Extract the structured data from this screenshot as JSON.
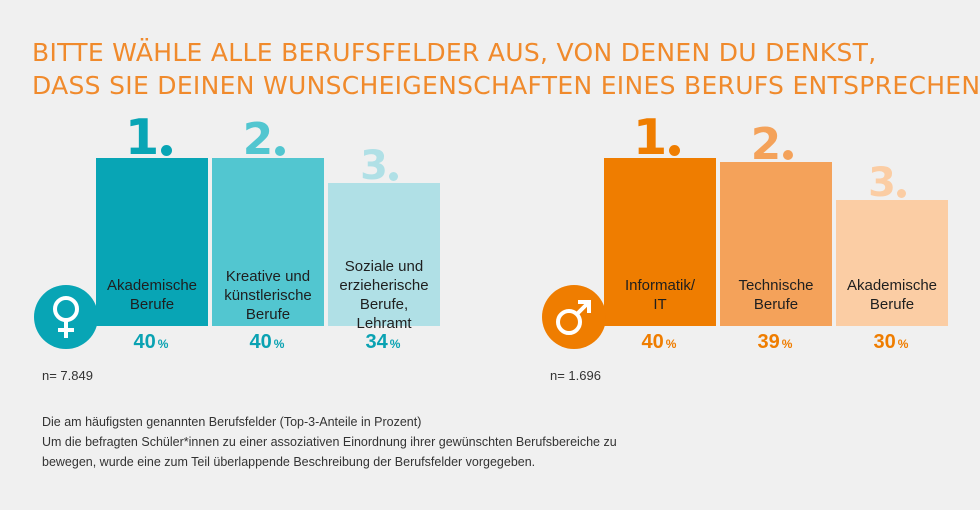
{
  "title_lines": [
    "BITTE WÄHLE ALLE BERUFSFELDER AUS, VON DENEN DU DENKST,",
    "DASS SIE DEINEN WUNSCHEIGENSCHAFTEN EINES BERUFS ENTSPRECHEN."
  ],
  "notes": [
    "Die am häufigsten genannten Berufsfelder (Top-3-Anteile in Prozent)",
    "Um die befragten Schüler*innen zu einer assoziativen Einordnung ihrer gewünschten Berufsbereiche zu",
    "bewegen, wurde eine zum Teil überlappende Beschreibung der Berufsfelder vorgegeben."
  ],
  "colors": {
    "female": [
      "#08a5b5",
      "#52c6d0",
      "#b0e0e6"
    ],
    "male": [
      "#ef7d00",
      "#f4a25a",
      "#fbcda4"
    ],
    "title": "#f08a2c"
  },
  "icons": {
    "female": "female-sign-icon",
    "male": "male-sign-icon"
  },
  "chart_data": [
    {
      "type": "bar",
      "group": "female",
      "categories": [
        "Akademische Berufe",
        "Kreative und künstlerische Berufe",
        "Soziale und erzieherische Berufe, Lehramt"
      ],
      "labels": [
        "Akademische\nBerufe",
        "Kreative und\nkünstlerische\nBerufe",
        "Soziale und\nerzieherische\nBerufe,\nLehramt"
      ],
      "ranks": [
        "1.",
        "2.",
        "3."
      ],
      "values": [
        40,
        40,
        34
      ],
      "value_labels": [
        "40",
        "40",
        "34"
      ],
      "unit": "%",
      "n_label": "n= 7.849"
    },
    {
      "type": "bar",
      "group": "male",
      "categories": [
        "Informatik/IT",
        "Technische Berufe",
        "Akademische Berufe"
      ],
      "labels": [
        "Informatik/\nIT",
        "Technische\nBerufe",
        "Akademische\nBerufe"
      ],
      "ranks": [
        "1.",
        "2.",
        "3."
      ],
      "values": [
        40,
        39,
        30
      ],
      "value_labels": [
        "40",
        "39",
        "30"
      ],
      "unit": "%",
      "n_label": "n= 1.696"
    }
  ]
}
